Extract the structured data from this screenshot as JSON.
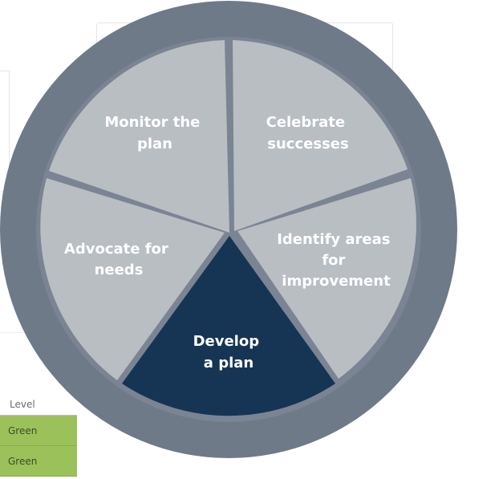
{
  "wheel": {
    "segments": [
      {
        "id": "monitor",
        "lines": [
          "Monitor the",
          "plan"
        ],
        "highlighted": false
      },
      {
        "id": "celebrate",
        "lines": [
          "Celebrate",
          "successes"
        ],
        "highlighted": false
      },
      {
        "id": "identify",
        "lines": [
          "Identify areas",
          "for",
          "improvement"
        ],
        "highlighted": false
      },
      {
        "id": "develop",
        "lines": [
          "Develop",
          "a plan"
        ],
        "highlighted": true
      },
      {
        "id": "advocate",
        "lines": [
          "Advocate for",
          "needs"
        ],
        "highlighted": false
      }
    ],
    "colors": {
      "ring": "#6f7a89",
      "segment": "#b9bec3",
      "highlight": "#163554",
      "divider": "#7a8493",
      "text": "#ffffff"
    }
  },
  "table_fragment": {
    "header": "Level",
    "rows": [
      "Green",
      "Green"
    ],
    "row_color": "#9bc25a"
  }
}
